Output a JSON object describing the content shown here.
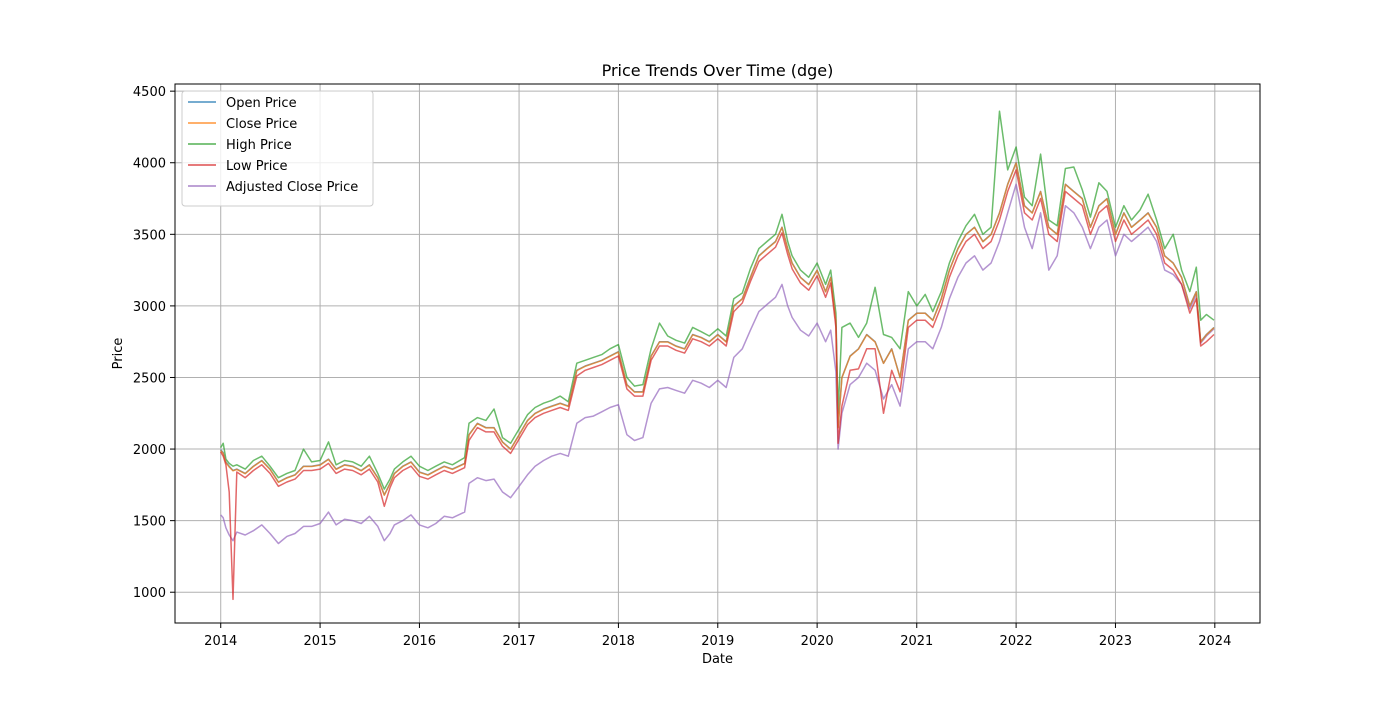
{
  "chart_data": {
    "type": "line",
    "title": "Price Trends Over Time (dge)",
    "xlabel": "Date",
    "ylabel": "Price",
    "xlim": [
      "2013-07-17",
      "2024-06-15"
    ],
    "ylim": [
      785,
      4550
    ],
    "x_ticks": [
      "2014",
      "2015",
      "2016",
      "2017",
      "2018",
      "2019",
      "2020",
      "2021",
      "2022",
      "2023",
      "2024"
    ],
    "y_ticks": [
      1000,
      1500,
      2000,
      2500,
      3000,
      3500,
      4000,
      4500
    ],
    "grid": true,
    "legend_position": "upper-left",
    "x": [
      "2014-01-01",
      "2014-01-10",
      "2014-01-20",
      "2014-02-01",
      "2014-02-15",
      "2014-03-01",
      "2014-04-01",
      "2014-05-01",
      "2014-06-01",
      "2014-07-01",
      "2014-08-01",
      "2014-09-01",
      "2014-10-01",
      "2014-11-01",
      "2014-12-01",
      "2015-01-01",
      "2015-02-01",
      "2015-03-01",
      "2015-04-01",
      "2015-05-01",
      "2015-06-01",
      "2015-07-01",
      "2015-08-01",
      "2015-08-25",
      "2015-09-15",
      "2015-10-01",
      "2015-11-01",
      "2015-12-01",
      "2016-01-01",
      "2016-02-01",
      "2016-03-01",
      "2016-04-01",
      "2016-05-01",
      "2016-06-15",
      "2016-07-01",
      "2016-08-01",
      "2016-09-01",
      "2016-10-01",
      "2016-11-01",
      "2016-12-01",
      "2017-01-01",
      "2017-02-01",
      "2017-03-01",
      "2017-04-01",
      "2017-05-01",
      "2017-06-01",
      "2017-07-01",
      "2017-08-01",
      "2017-09-01",
      "2017-10-01",
      "2017-11-01",
      "2017-12-01",
      "2018-01-01",
      "2018-02-01",
      "2018-03-01",
      "2018-04-01",
      "2018-05-01",
      "2018-06-01",
      "2018-07-01",
      "2018-08-01",
      "2018-09-01",
      "2018-10-01",
      "2018-11-01",
      "2018-12-01",
      "2019-01-01",
      "2019-02-01",
      "2019-03-01",
      "2019-04-01",
      "2019-05-01",
      "2019-06-01",
      "2019-07-01",
      "2019-08-01",
      "2019-08-25",
      "2019-09-15",
      "2019-10-01",
      "2019-11-01",
      "2019-12-01",
      "2020-01-01",
      "2020-02-01",
      "2020-02-20",
      "2020-03-10",
      "2020-03-18",
      "2020-04-01",
      "2020-05-01",
      "2020-06-01",
      "2020-07-01",
      "2020-08-01",
      "2020-09-01",
      "2020-10-01",
      "2020-11-01",
      "2020-12-01",
      "2021-01-01",
      "2021-02-01",
      "2021-03-01",
      "2021-04-01",
      "2021-05-01",
      "2021-06-01",
      "2021-07-01",
      "2021-08-01",
      "2021-09-01",
      "2021-10-01",
      "2021-11-01",
      "2021-12-01",
      "2022-01-01",
      "2022-02-01",
      "2022-03-01",
      "2022-04-01",
      "2022-05-01",
      "2022-06-01",
      "2022-07-01",
      "2022-08-01",
      "2022-09-01",
      "2022-10-01",
      "2022-11-01",
      "2022-12-01",
      "2023-01-01",
      "2023-02-01",
      "2023-03-01",
      "2023-04-01",
      "2023-05-01",
      "2023-06-01",
      "2023-07-01",
      "2023-08-01",
      "2023-09-01",
      "2023-10-01",
      "2023-10-25",
      "2023-11-10",
      "2023-12-01",
      "2023-12-29"
    ],
    "series": [
      {
        "name": "Open Price",
        "color": "#1f77b4",
        "values": [
          1995,
          1975,
          1910,
          1880,
          1850,
          1860,
          1830,
          1880,
          1920,
          1860,
          1770,
          1800,
          1820,
          1880,
          1880,
          1890,
          1930,
          1860,
          1890,
          1880,
          1850,
          1890,
          1800,
          1680,
          1760,
          1830,
          1880,
          1910,
          1840,
          1820,
          1850,
          1880,
          1860,
          1900,
          2100,
          2180,
          2150,
          2150,
          2050,
          2000,
          2100,
          2200,
          2250,
          2280,
          2300,
          2320,
          2300,
          2550,
          2580,
          2600,
          2620,
          2650,
          2680,
          2450,
          2400,
          2400,
          2650,
          2750,
          2750,
          2720,
          2700,
          2800,
          2780,
          2750,
          2800,
          2750,
          3000,
          3050,
          3200,
          3350,
          3400,
          3450,
          3550,
          3400,
          3300,
          3200,
          3150,
          3250,
          3100,
          3200,
          2900,
          2150,
          2500,
          2650,
          2700,
          2800,
          2750,
          2600,
          2700,
          2500,
          2900,
          2950,
          2950,
          2900,
          3050,
          3250,
          3400,
          3500,
          3550,
          3450,
          3500,
          3650,
          3850,
          4000,
          3700,
          3650,
          3800,
          3550,
          3500,
          3850,
          3800,
          3750,
          3550,
          3700,
          3750,
          3500,
          3650,
          3550,
          3600,
          3650,
          3550,
          3350,
          3300,
          3200,
          3000,
          3100,
          2750,
          2800,
          2850
        ]
      },
      {
        "name": "Close Price",
        "color": "#ff7f0e",
        "values": [
          1990,
          1970,
          1905,
          1875,
          1848,
          1858,
          1828,
          1878,
          1918,
          1858,
          1768,
          1798,
          1818,
          1878,
          1878,
          1888,
          1928,
          1858,
          1888,
          1878,
          1848,
          1888,
          1798,
          1678,
          1758,
          1828,
          1878,
          1908,
          1838,
          1818,
          1848,
          1878,
          1858,
          1898,
          2098,
          2178,
          2148,
          2148,
          2048,
          1998,
          2098,
          2198,
          2248,
          2278,
          2298,
          2318,
          2298,
          2548,
          2578,
          2598,
          2618,
          2648,
          2678,
          2448,
          2398,
          2398,
          2648,
          2748,
          2748,
          2718,
          2698,
          2798,
          2778,
          2748,
          2798,
          2748,
          2998,
          3048,
          3198,
          3348,
          3398,
          3448,
          3548,
          3398,
          3298,
          3198,
          3148,
          3248,
          3098,
          3198,
          2898,
          2148,
          2498,
          2648,
          2698,
          2798,
          2748,
          2598,
          2698,
          2498,
          2898,
          2948,
          2948,
          2898,
          3048,
          3248,
          3398,
          3498,
          3548,
          3448,
          3498,
          3648,
          3848,
          3998,
          3698,
          3648,
          3798,
          3548,
          3498,
          3848,
          3798,
          3748,
          3548,
          3698,
          3748,
          3498,
          3648,
          3548,
          3598,
          3648,
          3548,
          3348,
          3298,
          3198,
          2998,
          3098,
          2748,
          2798,
          2848
        ]
      },
      {
        "name": "High Price",
        "color": "#2ca02c",
        "values": [
          2010,
          2040,
          1930,
          1900,
          1880,
          1890,
          1860,
          1920,
          1950,
          1880,
          1800,
          1830,
          1850,
          2000,
          1910,
          1920,
          2050,
          1890,
          1920,
          1910,
          1880,
          1950,
          1830,
          1720,
          1790,
          1860,
          1910,
          1950,
          1880,
          1850,
          1880,
          1910,
          1890,
          1940,
          2180,
          2220,
          2200,
          2280,
          2080,
          2040,
          2140,
          2240,
          2290,
          2320,
          2340,
          2370,
          2330,
          2600,
          2620,
          2640,
          2660,
          2700,
          2730,
          2500,
          2440,
          2450,
          2700,
          2880,
          2790,
          2760,
          2740,
          2850,
          2820,
          2790,
          2840,
          2790,
          3050,
          3090,
          3260,
          3400,
          3450,
          3500,
          3640,
          3450,
          3350,
          3250,
          3200,
          3300,
          3150,
          3250,
          2950,
          2250,
          2850,
          2880,
          2780,
          2880,
          3130,
          2800,
          2780,
          2700,
          3100,
          3000,
          3080,
          2960,
          3100,
          3300,
          3450,
          3560,
          3640,
          3500,
          3550,
          4360,
          3950,
          4110,
          3760,
          3700,
          4060,
          3600,
          3560,
          3960,
          3970,
          3810,
          3620,
          3860,
          3800,
          3550,
          3700,
          3600,
          3670,
          3780,
          3600,
          3400,
          3500,
          3250,
          3100,
          3270,
          2900,
          2940,
          2900
        ]
      },
      {
        "name": "Low Price",
        "color": "#d62728",
        "values": [
          1980,
          1950,
          1890,
          1700,
          950,
          1840,
          1800,
          1850,
          1890,
          1830,
          1740,
          1770,
          1790,
          1850,
          1850,
          1860,
          1900,
          1830,
          1860,
          1850,
          1820,
          1860,
          1770,
          1600,
          1730,
          1800,
          1850,
          1880,
          1810,
          1790,
          1820,
          1850,
          1830,
          1870,
          2060,
          2150,
          2120,
          2120,
          2020,
          1970,
          2070,
          2170,
          2220,
          2250,
          2270,
          2290,
          2270,
          2510,
          2550,
          2570,
          2590,
          2620,
          2650,
          2420,
          2370,
          2370,
          2620,
          2720,
          2720,
          2690,
          2670,
          2770,
          2750,
          2720,
          2770,
          2720,
          2960,
          3020,
          3170,
          3310,
          3360,
          3410,
          3510,
          3360,
          3260,
          3160,
          3110,
          3210,
          3060,
          3160,
          2850,
          2040,
          2300,
          2550,
          2560,
          2700,
          2700,
          2250,
          2550,
          2400,
          2850,
          2900,
          2900,
          2850,
          3000,
          3200,
          3350,
          3450,
          3500,
          3400,
          3450,
          3600,
          3800,
          3950,
          3650,
          3600,
          3750,
          3500,
          3450,
          3800,
          3750,
          3700,
          3500,
          3650,
          3700,
          3450,
          3600,
          3500,
          3550,
          3600,
          3500,
          3300,
          3250,
          3150,
          2950,
          3050,
          2720,
          2750,
          2800
        ]
      },
      {
        "name": "Adjusted Close Price",
        "color": "#9467bd",
        "values": [
          1540,
          1520,
          1450,
          1400,
          1360,
          1420,
          1400,
          1430,
          1470,
          1410,
          1340,
          1390,
          1410,
          1460,
          1460,
          1480,
          1560,
          1470,
          1510,
          1500,
          1480,
          1530,
          1460,
          1360,
          1410,
          1470,
          1500,
          1540,
          1470,
          1450,
          1480,
          1530,
          1520,
          1560,
          1760,
          1800,
          1780,
          1790,
          1700,
          1660,
          1740,
          1820,
          1880,
          1920,
          1950,
          1970,
          1950,
          2180,
          2220,
          2230,
          2260,
          2290,
          2310,
          2100,
          2060,
          2080,
          2320,
          2420,
          2430,
          2410,
          2390,
          2480,
          2460,
          2430,
          2480,
          2430,
          2640,
          2700,
          2830,
          2960,
          3010,
          3060,
          3150,
          3000,
          2920,
          2830,
          2790,
          2880,
          2750,
          2830,
          2540,
          2000,
          2250,
          2450,
          2500,
          2600,
          2550,
          2350,
          2450,
          2300,
          2700,
          2750,
          2750,
          2700,
          2850,
          3050,
          3200,
          3300,
          3350,
          3250,
          3300,
          3450,
          3650,
          3850,
          3550,
          3400,
          3650,
          3250,
          3350,
          3700,
          3650,
          3550,
          3400,
          3550,
          3600,
          3350,
          3500,
          3450,
          3500,
          3550,
          3450,
          3250,
          3220,
          3150,
          2980,
          3080,
          2740,
          2790,
          2840
        ]
      }
    ]
  }
}
